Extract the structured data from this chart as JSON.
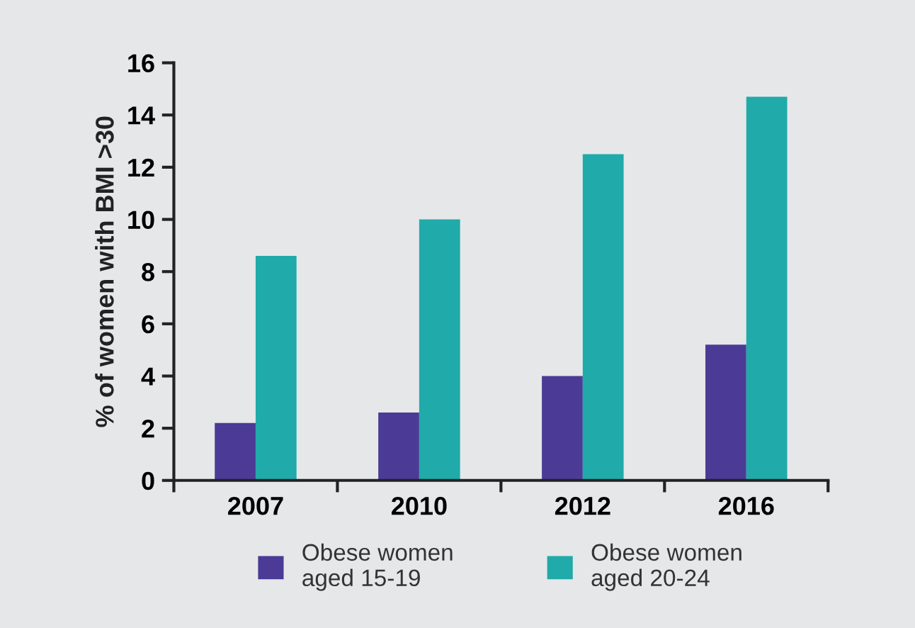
{
  "chart_data": {
    "type": "bar",
    "ylabel": "% of women with BMI >30",
    "categories": [
      "2007",
      "2010",
      "2012",
      "2016"
    ],
    "series": [
      {
        "name": "Obese women\naged 15-19",
        "color": "#4b3b96",
        "values": [
          2.2,
          2.6,
          4.0,
          5.2
        ]
      },
      {
        "name": "Obese women\naged 20-24",
        "color": "#20aaaa",
        "values": [
          8.6,
          10.0,
          12.5,
          14.7
        ]
      }
    ],
    "ylim": [
      0,
      16
    ],
    "yticks": [
      0,
      2,
      4,
      6,
      8,
      10,
      12,
      14,
      16
    ],
    "grid": false,
    "legend": "bottom"
  }
}
